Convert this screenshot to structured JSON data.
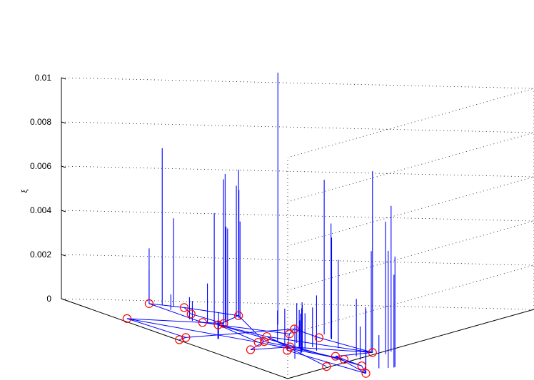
{
  "chart_data": {
    "type": "3d-stem",
    "title": "",
    "zlabel": "ξ",
    "zlim": [
      0,
      0.01
    ],
    "z_ticks": [
      {
        "value": 0,
        "label": "0"
      },
      {
        "value": 0.002,
        "label": "0.002"
      },
      {
        "value": 0.004,
        "label": "0.004"
      },
      {
        "value": 0.006,
        "label": "0.006"
      },
      {
        "value": 0.008,
        "label": "0.008"
      },
      {
        "value": 0.01,
        "label": "0.01"
      }
    ],
    "grid": "dotted",
    "colors": {
      "stem": "#0000ff",
      "edge": "#0000ff",
      "node": "#ff0000",
      "grid": "#000000"
    },
    "nodes": [
      {
        "id": 1,
        "u": 0.039,
        "v": 0.167
      },
      {
        "id": 2,
        "u": 0.081,
        "v": 0.221
      },
      {
        "id": 3,
        "u": 0.164,
        "v": 0.196
      },
      {
        "id": 4,
        "u": 0.246,
        "v": 0.021
      },
      {
        "id": 5,
        "u": 0.173,
        "v": 0.292
      },
      {
        "id": 6,
        "u": 0.283,
        "v": 0.208
      },
      {
        "id": 7,
        "u": 0.275,
        "v": 0.167
      },
      {
        "id": 8,
        "u": 0.302,
        "v": 0.187
      },
      {
        "id": 9,
        "u": 0.513,
        "v": 0.004
      },
      {
        "id": 10,
        "u": 0.481,
        "v": 0.033
      },
      {
        "id": 11,
        "u": 0.334,
        "v": 0.333
      },
      {
        "id": 12,
        "u": 0.402,
        "v": 0.29
      },
      {
        "id": 13,
        "u": 0.443,
        "v": 0.333
      },
      {
        "id": 14,
        "u": 0.444,
        "v": 0.222
      },
      {
        "id": 15,
        "u": 0.512,
        "v": 0.184
      },
      {
        "id": 16,
        "u": 0.523,
        "v": 0.166
      },
      {
        "id": 17,
        "u": 0.576,
        "v": 0.208
      },
      {
        "id": 18,
        "u": 0.625,
        "v": 0.101
      },
      {
        "id": 19,
        "u": 0.687,
        "v": 0.251
      },
      {
        "id": 20,
        "u": 0.624,
        "v": 0.179
      },
      {
        "id": 21,
        "u": 0.625,
        "v": 0.359
      },
      {
        "id": 22,
        "u": 0.727,
        "v": 0.25
      },
      {
        "id": 23,
        "u": 0.807,
        "v": 0.249
      },
      {
        "id": 24,
        "u": 0.907,
        "v": 0.21
      },
      {
        "id": 25,
        "u": 0.827,
        "v": 0.165
      }
    ],
    "edges": [
      [
        1,
        2
      ],
      [
        1,
        7
      ],
      [
        2,
        3
      ],
      [
        2,
        5
      ],
      [
        3,
        6
      ],
      [
        5,
        8
      ],
      [
        5,
        15
      ],
      [
        6,
        4
      ],
      [
        6,
        7
      ],
      [
        7,
        8
      ],
      [
        8,
        12
      ],
      [
        8,
        14
      ],
      [
        8,
        16
      ],
      [
        8,
        23
      ],
      [
        4,
        10
      ],
      [
        4,
        16
      ],
      [
        10,
        9
      ],
      [
        10,
        11
      ],
      [
        11,
        12
      ],
      [
        11,
        13
      ],
      [
        13,
        21
      ],
      [
        21,
        14
      ],
      [
        21,
        17
      ],
      [
        21,
        19
      ],
      [
        12,
        20
      ],
      [
        14,
        25
      ],
      [
        14,
        17
      ],
      [
        17,
        18
      ],
      [
        17,
        22
      ],
      [
        15,
        18
      ],
      [
        15,
        17
      ],
      [
        19,
        22
      ],
      [
        19,
        24
      ],
      [
        20,
        24
      ],
      [
        23,
        24
      ],
      [
        23,
        22
      ],
      [
        16,
        22
      ]
    ],
    "stems": [
      {
        "u": 0.039,
        "v": 0.167,
        "z": 0.0015
      },
      {
        "u": 0.039,
        "v": 0.167,
        "z": 0.0025
      },
      {
        "u": 0.055,
        "v": 0.187,
        "z": 0.0071
      },
      {
        "u": 0.074,
        "v": 0.202,
        "z": 0.004
      },
      {
        "u": 0.116,
        "v": 0.176,
        "z": 0.0007
      },
      {
        "u": 0.173,
        "v": 0.292,
        "z": 0.0066
      },
      {
        "u": 0.18,
        "v": 0.284,
        "z": 0.0059
      },
      {
        "u": 0.206,
        "v": 0.277,
        "z": 0.0058
      },
      {
        "u": 0.213,
        "v": 0.276,
        "z": 0.0044
      },
      {
        "u": 0.236,
        "v": 0.158,
        "z": 0.001
      },
      {
        "u": 0.252,
        "v": 0.231,
        "z": 0.0042
      },
      {
        "u": 0.257,
        "v": 0.154,
        "z": 0.0009
      },
      {
        "u": 0.262,
        "v": 0.221,
        "z": 0.0067
      },
      {
        "u": 0.28,
        "v": 0.324,
        "z": 0.0114
      },
      {
        "u": 0.287,
        "v": 0.186,
        "z": 0.005
      },
      {
        "u": 0.305,
        "v": 0.197,
        "z": 0.0066
      },
      {
        "u": 0.316,
        "v": 0.197,
        "z": 0.0045
      },
      {
        "u": 0.284,
        "v": 0.173,
        "z": 0.0018
      },
      {
        "u": 0.399,
        "v": 0.365,
        "z": 0.007
      },
      {
        "u": 0.45,
        "v": 0.355,
        "z": 0.0052
      },
      {
        "u": 0.461,
        "v": 0.351,
        "z": 0.0046
      },
      {
        "u": 0.488,
        "v": 0.099,
        "z": 0.0012
      },
      {
        "u": 0.493,
        "v": 0.095,
        "z": 0.0008
      },
      {
        "u": 0.506,
        "v": 0.215,
        "z": 0.0014
      },
      {
        "u": 0.52,
        "v": 0.249,
        "z": 0.0018
      },
      {
        "u": 0.538,
        "v": 0.215,
        "z": 0.0016
      },
      {
        "u": 0.573,
        "v": 0.257,
        "z": 0.0018
      },
      {
        "u": 0.625,
        "v": 0.359,
        "z": 0.0082
      },
      {
        "u": 0.609,
        "v": 0.406,
        "z": 0.0066
      },
      {
        "u": 0.645,
        "v": 0.377,
        "z": 0.006
      },
      {
        "u": 0.63,
        "v": 0.354,
        "z": 0.0046
      },
      {
        "u": 0.578,
        "v": 0.309,
        "z": 0.004
      },
      {
        "u": 0.573,
        "v": 0.23,
        "z": 0.0012
      },
      {
        "u": 0.581,
        "v": 0.225,
        "z": 0.0017
      },
      {
        "u": 0.594,
        "v": 0.231,
        "z": 0.0016
      },
      {
        "u": 0.605,
        "v": 0.22,
        "z": 0.002
      },
      {
        "u": 0.618,
        "v": 0.244,
        "z": 0.0025
      },
      {
        "u": 0.625,
        "v": 0.21,
        "z": 0.0022
      },
      {
        "u": 0.648,
        "v": 0.198,
        "z": 0.002
      },
      {
        "u": 0.66,
        "v": 0.19,
        "z": 0.0018
      },
      {
        "u": 0.681,
        "v": 0.298,
        "z": 0.0026
      },
      {
        "u": 0.725,
        "v": 0.285,
        "z": 0.0015
      },
      {
        "u": 0.733,
        "v": 0.143,
        "z": 0.0015
      },
      {
        "u": 0.812,
        "v": 0.317,
        "z": 0.005
      },
      {
        "u": 0.82,
        "v": 0.311,
        "z": 0.0042
      },
      {
        "u": 0.828,
        "v": 0.295,
        "z": 0.0053
      },
      {
        "u": 0.835,
        "v": 0.272,
        "z": 0.0015
      },
      {
        "u": 0.907,
        "v": 0.21,
        "z": 0.0029
      },
      {
        "u": 0.91,
        "v": 0.208,
        "z": 0.003
      }
    ]
  }
}
